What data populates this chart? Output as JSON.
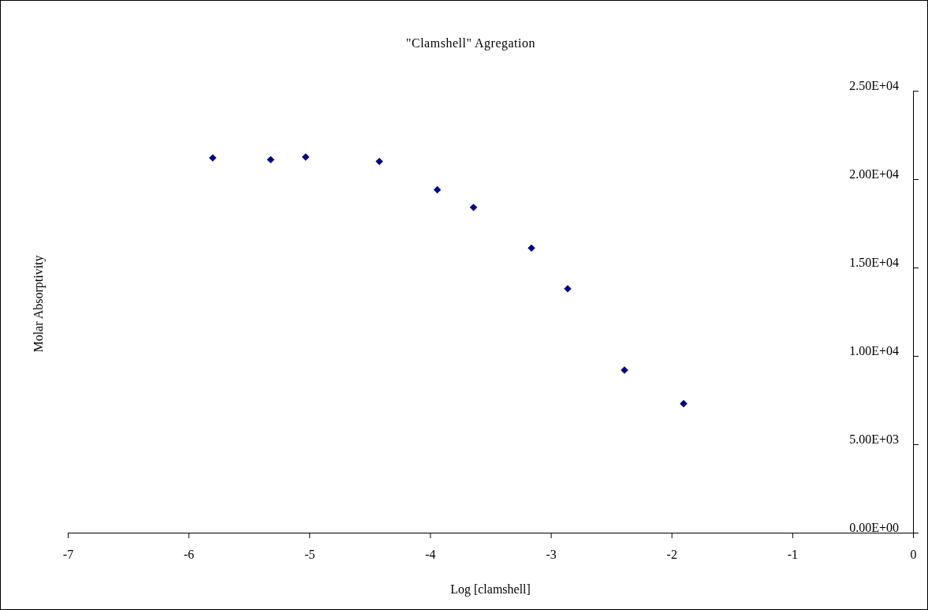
{
  "chart_data": {
    "type": "scatter",
    "title": "\"Clamshell\" Agregation",
    "xlabel": "Log [clamshell]",
    "ylabel": "Molar Absorptivity",
    "x": [
      -5.8,
      -5.32,
      -5.03,
      -4.42,
      -3.94,
      -3.64,
      -3.16,
      -2.86,
      -2.39,
      -1.9
    ],
    "series": [
      {
        "color": "#000080",
        "values": [
          21200,
          21100,
          21250,
          21000,
          19400,
          18400,
          16100,
          13800,
          9200,
          7300
        ]
      }
    ],
    "xlim": [
      -7,
      0
    ],
    "xticks": [
      -7,
      -6,
      -5,
      -4,
      -3,
      -2,
      -1,
      0
    ],
    "ylim": [
      0,
      25000
    ],
    "yticks": [
      {
        "value": 0,
        "label": "0.00E+00"
      },
      {
        "value": 5000,
        "label": "5.00E+03"
      },
      {
        "value": 10000,
        "label": "1.00E+04"
      },
      {
        "value": 15000,
        "label": "1.50E+04"
      },
      {
        "value": 20000,
        "label": "2.00E+04"
      },
      {
        "value": 25000,
        "label": "2.50E+04"
      }
    ],
    "marker": "diamond",
    "grid": false
  }
}
